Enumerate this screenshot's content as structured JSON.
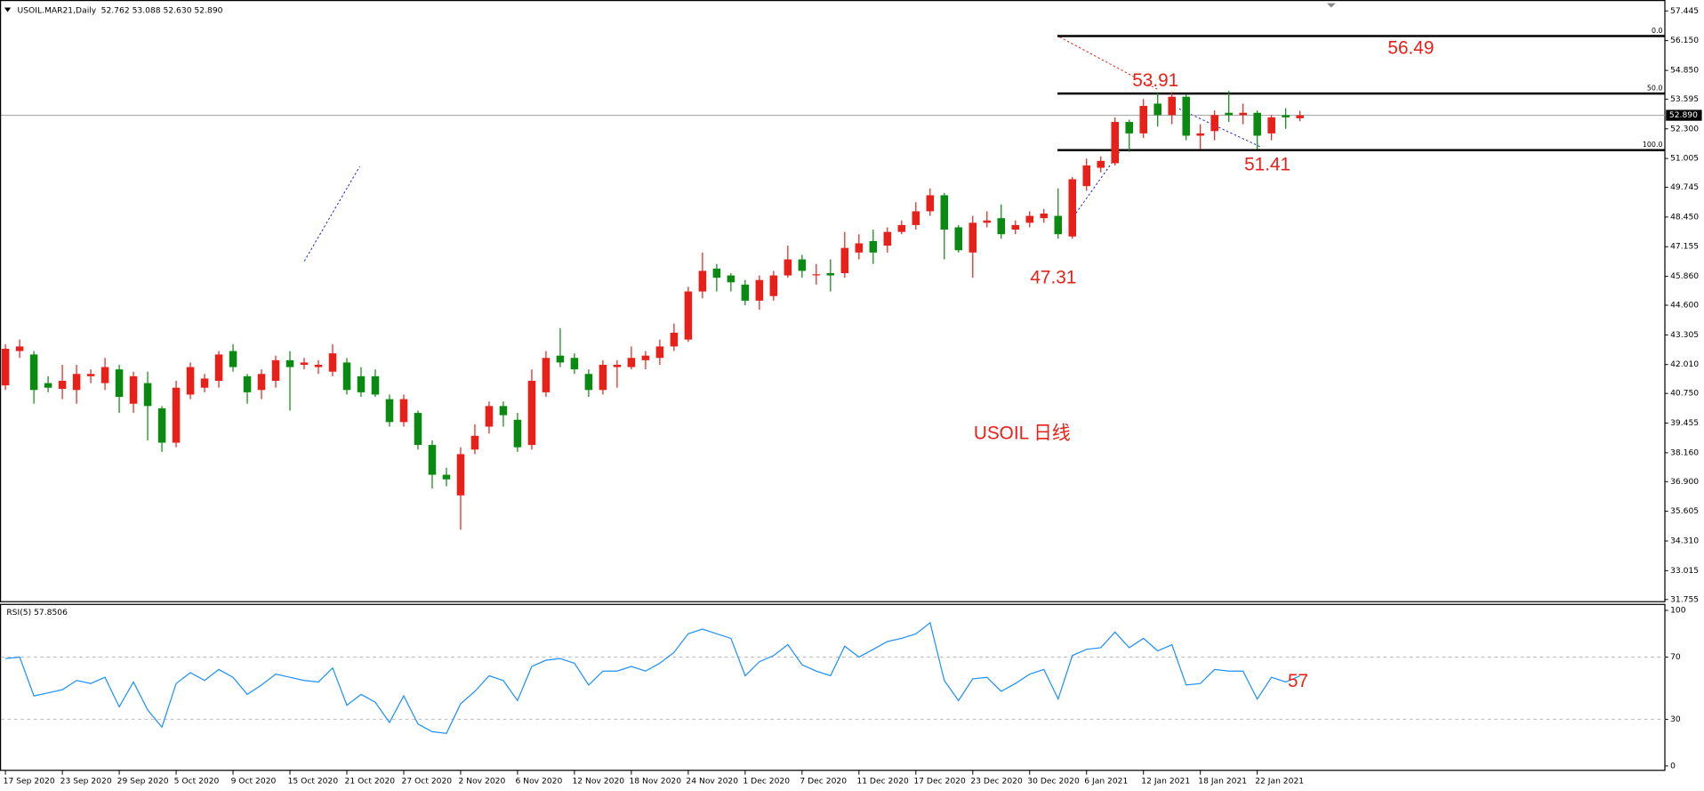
{
  "chart_data": {
    "type": "candlestick",
    "header": "USOIL.MAR21,Daily",
    "header_values": "52.762 53.088 52.630 52.890",
    "up_color": "#e8201a",
    "down_color": "#0b8a12",
    "grid": false,
    "categories": [
      "17 Sep 2020",
      null,
      null,
      null,
      "23 Sep 2020",
      null,
      null,
      null,
      "29 Sep 2020",
      null,
      null,
      null,
      "5 Oct 2020",
      null,
      null,
      null,
      "9 Oct 2020",
      null,
      null,
      null,
      "15 Oct 2020",
      null,
      null,
      null,
      "21 Oct 2020",
      null,
      null,
      null,
      "27 Oct 2020",
      null,
      null,
      null,
      "2 Nov 2020",
      null,
      null,
      null,
      "6 Nov 2020",
      null,
      null,
      null,
      "12 Nov 2020",
      null,
      null,
      null,
      "18 Nov 2020",
      null,
      null,
      null,
      "24 Nov 2020",
      null,
      null,
      null,
      "1 Dec 2020",
      null,
      null,
      null,
      "7 Dec 2020",
      null,
      null,
      null,
      "11 Dec 2020",
      null,
      null,
      null,
      "17 Dec 2020",
      null,
      null,
      null,
      "23 Dec 2020",
      null,
      null,
      null,
      "30 Dec 2020",
      null,
      null,
      null,
      "6 Jan 2021",
      null,
      null,
      null,
      "12 Jan 2021",
      null,
      null,
      null,
      "18 Jan 2021",
      null,
      null,
      null,
      "22 Jan 2021",
      null,
      null,
      null
    ],
    "open": [
      41.1,
      42.6,
      42.45,
      41.2,
      40.95,
      40.9,
      41.5,
      41.2,
      41.8,
      40.3,
      41.2,
      40.1,
      38.6,
      40.7,
      41.0,
      41.3,
      42.6,
      41.5,
      40.9,
      41.3,
      42.2,
      42.0,
      41.9,
      41.7,
      42.1,
      41.5,
      41.5,
      40.5,
      39.5,
      39.9,
      38.5,
      37.2,
      36.3,
      38.3,
      39.3,
      40.2,
      39.6,
      38.5,
      40.8,
      42.4,
      42.3,
      41.6,
      40.9,
      41.9,
      41.9,
      42.2,
      42.3,
      42.8,
      43.1,
      45.2,
      46.2,
      45.9,
      45.5,
      44.8,
      45.0,
      45.9,
      46.6,
      45.95,
      46.0,
      46.0,
      46.9,
      47.4,
      47.2,
      47.8,
      48.1,
      48.7,
      49.4,
      48.0,
      46.9,
      48.2,
      48.4,
      47.9,
      48.2,
      48.4,
      48.5,
      47.6,
      49.8,
      50.6,
      50.8,
      52.6,
      52.1,
      53.4,
      52.9,
      53.7,
      52.0,
      52.2,
      53.0,
      52.9,
      53.0,
      52.1,
      52.9,
      52.762
    ],
    "high": [
      42.9,
      43.1,
      42.6,
      41.5,
      42.0,
      42.0,
      41.8,
      42.3,
      42.0,
      41.7,
      41.7,
      40.2,
      41.3,
      42.1,
      41.6,
      42.6,
      42.9,
      41.6,
      41.8,
      42.4,
      42.6,
      42.3,
      42.2,
      42.9,
      42.3,
      41.9,
      41.8,
      40.7,
      40.7,
      40.0,
      38.7,
      37.5,
      38.4,
      39.4,
      40.4,
      40.4,
      39.9,
      41.8,
      42.6,
      43.6,
      42.5,
      41.8,
      42.2,
      42.2,
      42.8,
      42.6,
      43.1,
      43.8,
      45.4,
      46.9,
      46.4,
      46.0,
      45.7,
      45.9,
      46.1,
      47.2,
      46.8,
      46.4,
      46.6,
      47.8,
      47.7,
      47.9,
      48.0,
      48.3,
      49.1,
      49.7,
      49.5,
      48.1,
      48.5,
      48.7,
      49.0,
      48.3,
      48.7,
      48.8,
      49.7,
      50.2,
      51.0,
      51.1,
      52.8,
      52.7,
      53.6,
      53.9,
      53.91,
      53.8,
      52.5,
      53.1,
      53.95,
      53.4,
      53.1,
      52.9,
      53.2,
      53.088
    ],
    "low": [
      40.9,
      42.3,
      40.3,
      40.8,
      40.5,
      40.3,
      41.2,
      40.9,
      39.9,
      39.9,
      38.7,
      38.2,
      38.4,
      40.5,
      40.8,
      41.0,
      41.7,
      40.3,
      40.5,
      41.0,
      40.0,
      41.8,
      41.6,
      41.5,
      40.7,
      40.6,
      40.6,
      39.3,
      39.3,
      38.3,
      36.6,
      36.7,
      34.8,
      38.1,
      39.0,
      39.3,
      38.2,
      38.3,
      40.6,
      41.9,
      41.6,
      40.6,
      40.7,
      41.0,
      41.8,
      41.8,
      42.0,
      42.6,
      43.0,
      44.9,
      45.2,
      45.2,
      44.6,
      44.4,
      44.8,
      45.8,
      45.8,
      45.5,
      45.2,
      45.8,
      46.6,
      46.4,
      46.9,
      47.7,
      47.9,
      48.5,
      46.6,
      46.9,
      45.8,
      48.0,
      47.5,
      47.7,
      48.0,
      48.2,
      47.5,
      47.5,
      49.6,
      50.4,
      50.7,
      51.3,
      51.9,
      52.4,
      52.5,
      51.8,
      51.4,
      51.8,
      52.6,
      52.5,
      51.41,
      51.8,
      52.3,
      52.63
    ],
    "close": [
      42.7,
      42.8,
      40.9,
      41.0,
      41.3,
      41.6,
      41.6,
      41.9,
      40.6,
      41.5,
      40.2,
      38.6,
      41.0,
      41.9,
      41.4,
      42.45,
      41.9,
      40.8,
      41.6,
      42.2,
      41.9,
      42.1,
      42.0,
      42.5,
      40.9,
      40.8,
      40.7,
      39.5,
      40.5,
      38.5,
      37.2,
      37.0,
      38.1,
      38.9,
      40.2,
      39.8,
      38.4,
      41.3,
      42.3,
      42.1,
      41.8,
      40.9,
      42.0,
      42.0,
      42.3,
      42.4,
      42.8,
      43.4,
      45.2,
      46.1,
      45.8,
      45.6,
      44.8,
      45.7,
      45.9,
      46.6,
      46.1,
      45.95,
      45.9,
      47.1,
      47.3,
      46.9,
      47.8,
      48.1,
      48.7,
      49.4,
      47.9,
      47.0,
      48.2,
      48.3,
      47.7,
      48.1,
      48.5,
      48.6,
      47.7,
      50.1,
      50.7,
      50.9,
      52.6,
      52.1,
      53.3,
      52.9,
      53.7,
      52.0,
      52.1,
      52.9,
      52.9,
      53.0,
      52.0,
      52.8,
      52.8,
      52.89
    ],
    "ylim": [
      31.66,
      57.78
    ],
    "yticks": [
      57.445,
      {
        "value": 56.15,
        "label": "56.150"
      },
      {
        "value": 54.85,
        "label": "54.850"
      },
      53.595,
      {
        "value": 52.3,
        "label": "52.300"
      },
      51.005,
      49.745,
      {
        "value": 48.45,
        "label": "48.450"
      },
      47.155,
      {
        "value": 45.86,
        "label": "45.860"
      },
      {
        "value": 44.6,
        "label": "44.600"
      },
      43.305,
      {
        "value": 42.01,
        "label": "42.010"
      },
      {
        "value": 40.75,
        "label": "40.750"
      },
      39.455,
      {
        "value": 38.16,
        "label": "38.160"
      },
      {
        "value": 36.9,
        "label": "36.900"
      },
      35.605,
      {
        "value": 34.31,
        "label": "34.310"
      },
      33.015,
      31.755
    ],
    "current_price": {
      "value": 52.89,
      "label": "52.890"
    },
    "fib_levels": [
      56.35,
      53.84,
      51.37
    ],
    "fib_labels": [
      "0.0",
      "50.0",
      "100.0"
    ],
    "annotations": [
      "56.49",
      "53.91",
      "51.41",
      "47.31",
      "USOIL 日线",
      "57"
    ],
    "rsi": {
      "title": "RSI(5) 57.8506",
      "color": "#1e90ff",
      "ylim": [
        0,
        100
      ],
      "yticks": [
        100,
        70,
        30,
        0
      ],
      "levels": [
        70,
        30
      ],
      "values": [
        69,
        70,
        45,
        47,
        49,
        55,
        53,
        57,
        38,
        54,
        36,
        25,
        53,
        60,
        55,
        62,
        57,
        46,
        52,
        59,
        57,
        55,
        54,
        63,
        39,
        46,
        41,
        28,
        45,
        27,
        22,
        21,
        40,
        48,
        58,
        55,
        42,
        64,
        68,
        69,
        66,
        52,
        61,
        61,
        64,
        61,
        66,
        73,
        85,
        88,
        85,
        82,
        58,
        67,
        71,
        78,
        65,
        61,
        58,
        77,
        70,
        75,
        80,
        82,
        85,
        92,
        55,
        42,
        56,
        57,
        48,
        53,
        59,
        62,
        43,
        71,
        75,
        76,
        86,
        76,
        82,
        74,
        78,
        52,
        53,
        62,
        61,
        61,
        43,
        57,
        54,
        57.8506
      ]
    }
  }
}
